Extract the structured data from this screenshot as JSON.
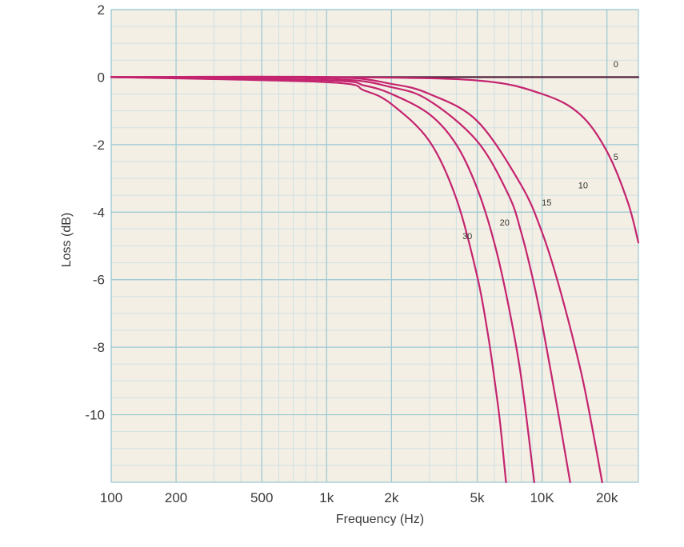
{
  "chart_data": {
    "type": "line",
    "title": "",
    "xlabel": "Frequency (Hz)",
    "ylabel": "Loss (dB)",
    "x_scale": "log",
    "xlim": [
      100,
      28000
    ],
    "ylim": [
      -12,
      2
    ],
    "grid": true,
    "legend": "none",
    "x_ticks": [
      {
        "value": 100,
        "label": "100"
      },
      {
        "value": 200,
        "label": "200"
      },
      {
        "value": 500,
        "label": "500"
      },
      {
        "value": 1000,
        "label": "1k"
      },
      {
        "value": 2000,
        "label": "2k"
      },
      {
        "value": 5000,
        "label": "5k"
      },
      {
        "value": 10000,
        "label": "10K"
      },
      {
        "value": 20000,
        "label": "20k"
      }
    ],
    "y_ticks": [
      {
        "value": 2,
        "label": "2"
      },
      {
        "value": 0,
        "label": "0"
      },
      {
        "value": -2,
        "label": "-2"
      },
      {
        "value": -4,
        "label": "-4"
      },
      {
        "value": -6,
        "label": "-6"
      },
      {
        "value": -8,
        "label": "-8"
      },
      {
        "value": -10,
        "label": "-10"
      }
    ],
    "series": [
      {
        "label": "0",
        "x": [
          100,
          28000
        ],
        "y": [
          0,
          0
        ]
      },
      {
        "label": "5",
        "x": [
          100,
          1000,
          5000,
          10000,
          15000,
          20000,
          25000,
          28000
        ],
        "y": [
          0,
          0,
          -0.1,
          -0.5,
          -1.1,
          -2.2,
          -3.7,
          -4.9
        ]
      },
      {
        "label": "10",
        "x": [
          100,
          1000,
          2000,
          3000,
          5000,
          8000,
          10000,
          12000,
          15000,
          17000,
          19000
        ],
        "y": [
          0,
          0,
          -0.2,
          -0.5,
          -1.3,
          -3.2,
          -4.6,
          -6.2,
          -8.6,
          -10.3,
          -12
        ]
      },
      {
        "label": "15",
        "x": [
          100,
          1000,
          2000,
          3000,
          5000,
          7000,
          8000,
          9000,
          10000,
          12000,
          13500
        ],
        "y": [
          0,
          -0.05,
          -0.3,
          -0.7,
          -1.9,
          -3.5,
          -4.6,
          -5.9,
          -7.3,
          -10.1,
          -12
        ]
      },
      {
        "label": "20",
        "x": [
          100,
          1000,
          1500,
          2000,
          3000,
          4000,
          5000,
          6000,
          7000,
          8000,
          9200
        ],
        "y": [
          0,
          -0.1,
          -0.25,
          -0.5,
          -1.1,
          -2.0,
          -3.3,
          -4.9,
          -6.8,
          -8.9,
          -12
        ]
      },
      {
        "label": "30",
        "x": [
          100,
          1000,
          1500,
          2000,
          3000,
          4000,
          5000,
          5600,
          6000,
          6400,
          6800
        ],
        "y": [
          0,
          -0.15,
          -0.4,
          -0.8,
          -1.9,
          -3.6,
          -5.9,
          -7.6,
          -8.9,
          -10.3,
          -12
        ]
      }
    ]
  }
}
